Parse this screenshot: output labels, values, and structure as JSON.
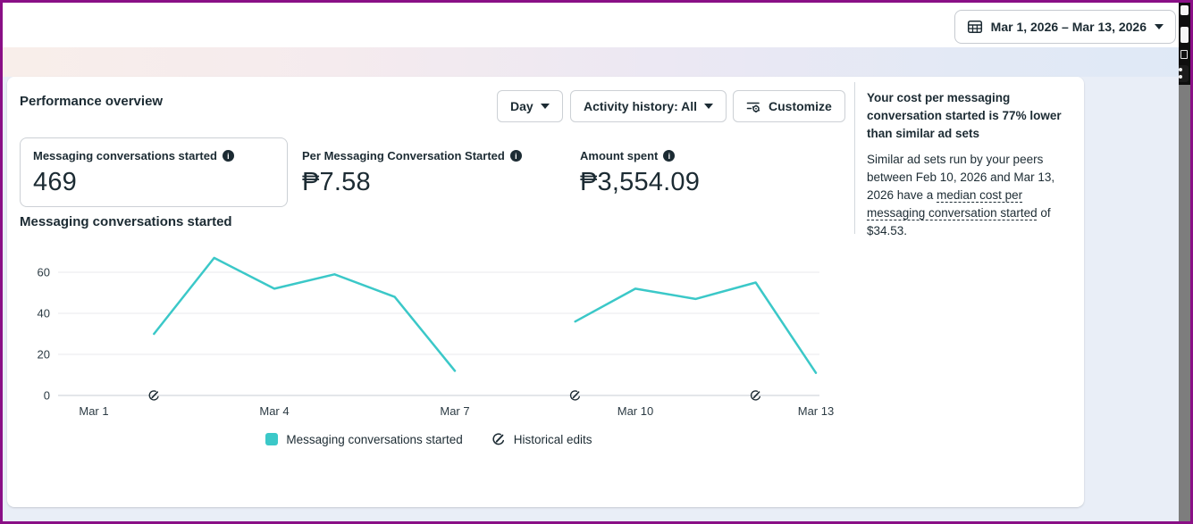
{
  "window": {
    "frame_color": "#8a0f86",
    "page_bg": "#e9eef7",
    "accent_teal": "#3bc8c8"
  },
  "topbar": {
    "date_range_label": "Mar 1, 2026 – Mar 13, 2026"
  },
  "toolbar": {
    "title": "Performance overview",
    "day_dropdown": "Day",
    "activity_dropdown": "Activity history: All",
    "customize_label": "Customize"
  },
  "metrics": [
    {
      "label": "Messaging conversations started",
      "value": "469",
      "selected": true
    },
    {
      "label": "Per Messaging Conversation Started",
      "value": "₱7.58",
      "selected": false
    },
    {
      "label": "Amount spent",
      "value": "₱3,554.09",
      "selected": false
    }
  ],
  "chart_section_title": "Messaging conversations started",
  "chart_data": {
    "type": "line",
    "title": "Messaging conversations started",
    "x_categories": [
      "Mar 1",
      "Mar 2",
      "Mar 3",
      "Mar 4",
      "Mar 5",
      "Mar 6",
      "Mar 7",
      "Mar 8",
      "Mar 9",
      "Mar 10",
      "Mar 11",
      "Mar 12",
      "Mar 13"
    ],
    "series": [
      {
        "name": "Messaging conversations started",
        "color": "#3bc8c8",
        "values": [
          null,
          30,
          67,
          52,
          59,
          48,
          12,
          null,
          36,
          52,
          47,
          55,
          11
        ]
      }
    ],
    "historical_edit_days": [
      "Mar 2",
      "Mar 9",
      "Mar 12"
    ],
    "x_tick_labels": [
      "Mar 1",
      "Mar 4",
      "Mar 7",
      "Mar 10",
      "Mar 13"
    ],
    "y_ticks": [
      0,
      20,
      40,
      60
    ],
    "ylim": [
      0,
      72
    ],
    "grid": true,
    "legend": [
      "Messaging conversations started",
      "Historical edits"
    ],
    "legend_position": "bottom"
  },
  "insight": {
    "heading": "Your cost per messaging conversation started is 77% lower than similar ad sets",
    "body_before_link": "Similar ad sets run by your peers between Feb 10, 2026 and Mar 13, 2026 have a ",
    "link_text": "median cost per messaging conversation started",
    "body_after_link": " of $34.53."
  }
}
